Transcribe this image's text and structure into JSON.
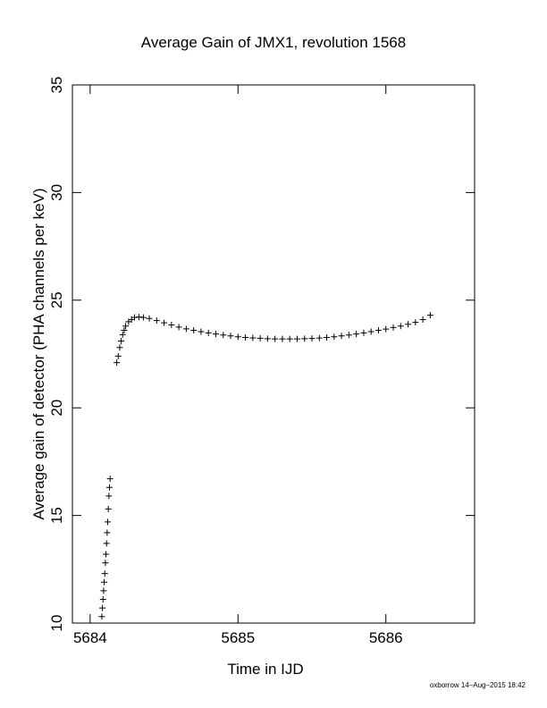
{
  "chart_data": {
    "type": "scatter",
    "title": "Average Gain of JMX1, revolution 1568",
    "x_label": "Time in IJD",
    "y_label": "Average gain of detector (PHA channels per keV)",
    "footer": "oxborrow 14–Aug–2015 18:42",
    "xlim": [
      5683.88,
      5686.6
    ],
    "ylim": [
      10,
      35
    ],
    "xticks": [
      5684,
      5685,
      5686
    ],
    "yticks": [
      10,
      15,
      20,
      25,
      30,
      35
    ],
    "marker": "plus",
    "color": "#000000",
    "x": [
      5684.079,
      5684.083,
      5684.087,
      5684.091,
      5684.095,
      5684.099,
      5684.103,
      5684.107,
      5684.111,
      5684.115,
      5684.119,
      5684.123,
      5684.127,
      5684.131,
      5684.135,
      5684.18,
      5684.19,
      5684.2,
      5684.21,
      5684.22,
      5684.23,
      5684.24,
      5684.26,
      5684.28,
      5684.3,
      5684.33,
      5684.36,
      5684.4,
      5684.45,
      5684.5,
      5684.55,
      5684.6,
      5684.65,
      5684.7,
      5684.75,
      5684.8,
      5684.85,
      5684.9,
      5684.95,
      5685.0,
      5685.05,
      5685.1,
      5685.15,
      5685.2,
      5685.25,
      5685.3,
      5685.35,
      5685.4,
      5685.45,
      5685.5,
      5685.55,
      5685.6,
      5685.65,
      5685.7,
      5685.75,
      5685.8,
      5685.85,
      5685.9,
      5685.95,
      5686.0,
      5686.05,
      5686.1,
      5686.15,
      5686.2,
      5686.25,
      5686.3
    ],
    "y": [
      10.3,
      10.7,
      11.1,
      11.5,
      11.9,
      12.3,
      12.8,
      13.2,
      13.7,
      14.2,
      14.7,
      15.3,
      15.9,
      16.3,
      16.7,
      22.1,
      22.4,
      22.8,
      23.1,
      23.4,
      23.6,
      23.8,
      24.0,
      24.1,
      24.2,
      24.22,
      24.2,
      24.15,
      24.05,
      23.95,
      23.85,
      23.75,
      23.67,
      23.6,
      23.54,
      23.48,
      23.43,
      23.38,
      23.34,
      23.3,
      23.27,
      23.25,
      23.23,
      23.21,
      23.2,
      23.2,
      23.2,
      23.2,
      23.21,
      23.22,
      23.24,
      23.27,
      23.3,
      23.34,
      23.38,
      23.43,
      23.48,
      23.54,
      23.6,
      23.66,
      23.73,
      23.8,
      23.88,
      23.97,
      24.1,
      24.3
    ]
  }
}
